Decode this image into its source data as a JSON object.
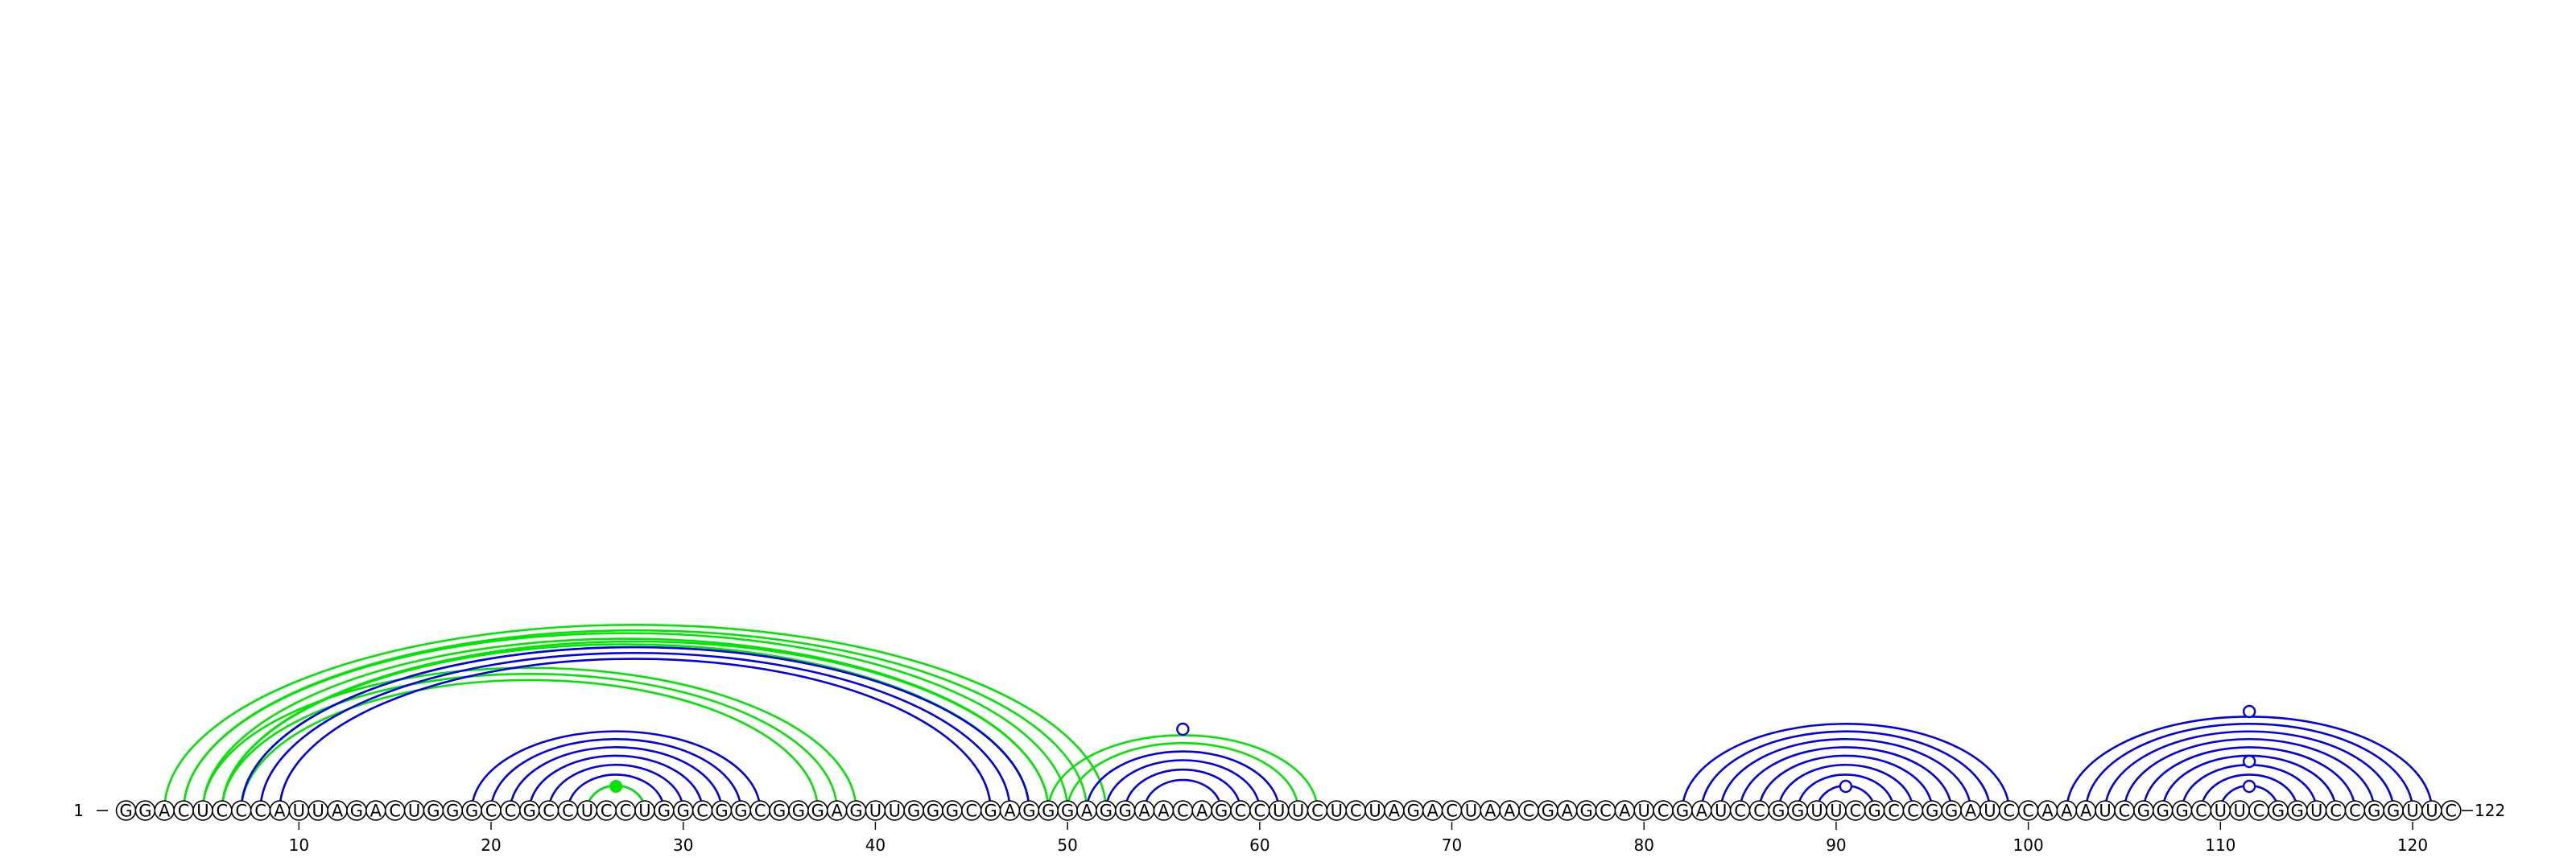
{
  "sequence": "GGACUCCCAUUAGACUGGGCCGCCUCCUGGCGGCGGGAGUUGGGCGAGGGAGGAACAGCCUUCUCUAGACUAACGAGCAUCGAUCCGGUUCGCCGGAUCCAAAUCGGGCUUCGGUCCGGUUC",
  "length": 122,
  "start_label": "1",
  "end_label": "122",
  "ticks": [
    10,
    20,
    30,
    40,
    50,
    60,
    70,
    80,
    90,
    100,
    110,
    120
  ],
  "colors": {
    "blue": "#0000ee",
    "green": "#00e600"
  },
  "arc_groups": [
    {
      "color": "green",
      "pairs": [
        [
          5,
          39
        ],
        [
          6,
          38
        ],
        [
          7,
          37
        ]
      ]
    },
    {
      "color": "green",
      "pairs": [
        [
          4,
          50
        ],
        [
          5,
          49
        ],
        [
          6,
          48
        ]
      ]
    },
    {
      "color": "green",
      "pairs": [
        [
          3,
          52
        ],
        [
          4,
          51
        ],
        [
          6,
          49
        ],
        [
          7,
          48
        ]
      ]
    },
    {
      "color": "blue",
      "pairs": [
        [
          7,
          48
        ],
        [
          8,
          47
        ],
        [
          9,
          46
        ]
      ]
    },
    {
      "color": "blue",
      "pairs": [
        [
          19,
          34
        ],
        [
          20,
          33
        ],
        [
          21,
          32
        ],
        [
          22,
          31
        ],
        [
          23,
          30
        ],
        [
          24,
          29
        ],
        [
          25,
          28
        ]
      ]
    },
    {
      "color": "green",
      "pairs": [
        [
          25,
          28
        ]
      ]
    },
    {
      "color": "blue",
      "pairs": [
        [
          51,
          61
        ],
        [
          52,
          60
        ],
        [
          53,
          59
        ],
        [
          54,
          58
        ]
      ]
    },
    {
      "color": "green",
      "pairs": [
        [
          49,
          63
        ],
        [
          50,
          62
        ]
      ]
    },
    {
      "color": "blue",
      "pairs": [
        [
          82,
          99
        ],
        [
          83,
          98
        ],
        [
          84,
          97
        ],
        [
          85,
          96
        ],
        [
          86,
          95
        ],
        [
          87,
          94
        ],
        [
          88,
          93
        ],
        [
          89,
          92
        ]
      ]
    },
    {
      "color": "blue",
      "pairs": [
        [
          102,
          121
        ],
        [
          103,
          120
        ],
        [
          104,
          119
        ],
        [
          105,
          118
        ],
        [
          106,
          117
        ],
        [
          107,
          116
        ],
        [
          108,
          115
        ],
        [
          109,
          114
        ],
        [
          110,
          113
        ]
      ]
    }
  ],
  "dots": [
    {
      "pos": 26.5,
      "color": "green",
      "filled": true
    },
    {
      "pos": 56,
      "color": "blue",
      "filled": false
    },
    {
      "pos": 90.5,
      "color": "blue",
      "filled": false
    },
    {
      "pos": 111.5,
      "color": "blue",
      "filled": false,
      "level": 0
    },
    {
      "pos": 111.5,
      "color": "blue",
      "filled": false,
      "level": 1
    },
    {
      "pos": 111.5,
      "color": "blue",
      "filled": false,
      "level": 3
    }
  ]
}
